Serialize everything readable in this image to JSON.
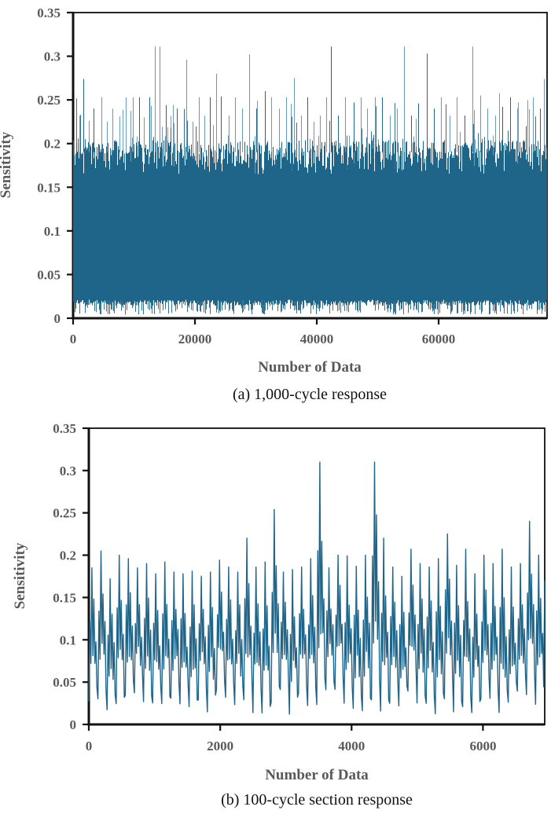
{
  "figure": {
    "description": "Two stacked sensitivity response plots",
    "background": "#ffffff"
  },
  "chart_data": [
    {
      "type": "line",
      "panel": "a",
      "caption": "(a) 1,000-cycle response",
      "xlabel": "Number of Data",
      "ylabel": "Sensitivity",
      "x_range": [
        0,
        77800
      ],
      "y_range": [
        0,
        0.35
      ],
      "x_tick_values": [
        0,
        20000,
        40000,
        60000
      ],
      "x_tick_labels": [
        "0",
        "20000",
        "40000",
        "60000"
      ],
      "y_tick_values": [
        0,
        0.05,
        0.1,
        0.15,
        0.2,
        0.25,
        0.3,
        0.35
      ],
      "y_tick_labels": [
        "0",
        "0.05",
        "0.1",
        "0.15",
        "0.2",
        "0.25",
        "0.3",
        "0.35"
      ],
      "grid": false,
      "legend": null,
      "line_color": "#1f6489",
      "spike_color": "#6e9cba",
      "axis_text_color": "#595959",
      "caption_color": "#111111",
      "series_kind": "dense-noise-band",
      "noise_band": {
        "seed": 7,
        "body_top_range": [
          0.165,
          0.205
        ],
        "body_bottom_range": [
          0.014,
          0.021
        ],
        "lower_spike_range": [
          0.004,
          0.012
        ],
        "lower_spike_rate": 0.32,
        "minor_upper_spike_range": [
          0.205,
          0.26
        ],
        "minor_upper_spike_rate": 0.1
      },
      "major_spikes": [
        [
          1000,
          0.232
        ],
        [
          1700,
          0.274
        ],
        [
          2600,
          0.226
        ],
        [
          3400,
          0.24
        ],
        [
          4700,
          0.253
        ],
        [
          5600,
          0.225
        ],
        [
          6500,
          0.24
        ],
        [
          7600,
          0.231
        ],
        [
          8600,
          0.253
        ],
        [
          9800,
          0.253
        ],
        [
          10800,
          0.253
        ],
        [
          11600,
          0.23
        ],
        [
          12500,
          0.253
        ],
        [
          13400,
          0.311
        ],
        [
          14200,
          0.311
        ],
        [
          15200,
          0.244
        ],
        [
          16000,
          0.218
        ],
        [
          17000,
          0.24
        ],
        [
          18600,
          0.296
        ],
        [
          19600,
          0.225
        ],
        [
          20600,
          0.253
        ],
        [
          21500,
          0.232
        ],
        [
          22500,
          0.253
        ],
        [
          23500,
          0.28
        ],
        [
          24300,
          0.254
        ],
        [
          25500,
          0.232
        ],
        [
          26600,
          0.253
        ],
        [
          27700,
          0.24
        ],
        [
          28900,
          0.302
        ],
        [
          30000,
          0.24
        ],
        [
          31500,
          0.26
        ],
        [
          32500,
          0.253
        ],
        [
          33800,
          0.24
        ],
        [
          35000,
          0.253
        ],
        [
          36200,
          0.275
        ],
        [
          37400,
          0.232
        ],
        [
          38500,
          0.253
        ],
        [
          39500,
          0.225
        ],
        [
          40500,
          0.232
        ],
        [
          41500,
          0.253
        ],
        [
          42300,
          0.311
        ],
        [
          43500,
          0.232
        ],
        [
          44700,
          0.253
        ],
        [
          46000,
          0.247
        ],
        [
          47200,
          0.253
        ],
        [
          48300,
          0.24
        ],
        [
          49500,
          0.253
        ],
        [
          50700,
          0.253
        ],
        [
          52000,
          0.232
        ],
        [
          53200,
          0.24
        ],
        [
          54300,
          0.311
        ],
        [
          55500,
          0.232
        ],
        [
          56700,
          0.246
        ],
        [
          58000,
          0.303
        ],
        [
          59200,
          0.24
        ],
        [
          60400,
          0.253
        ],
        [
          61800,
          0.232
        ],
        [
          63000,
          0.253
        ],
        [
          64200,
          0.232
        ],
        [
          65500,
          0.311
        ],
        [
          66800,
          0.255
        ],
        [
          68000,
          0.24
        ],
        [
          69300,
          0.232
        ],
        [
          70500,
          0.242
        ],
        [
          71800,
          0.253
        ],
        [
          73000,
          0.247
        ],
        [
          74300,
          0.22
        ],
        [
          75500,
          0.253
        ],
        [
          76600,
          0.24
        ],
        [
          77300,
          0.274
        ]
      ]
    },
    {
      "type": "line",
      "panel": "b",
      "caption": "(b) 100-cycle section response",
      "xlabel": "Number of Data",
      "ylabel": "Sensitivity",
      "x_range": [
        0,
        6940
      ],
      "y_range": [
        0,
        0.35
      ],
      "x_tick_values": [
        0,
        2000,
        4000,
        6000
      ],
      "x_tick_labels": [
        "0",
        "2000",
        "4000",
        "6000"
      ],
      "y_tick_values": [
        0,
        0.05,
        0.1,
        0.15,
        0.2,
        0.25,
        0.3,
        0.35
      ],
      "y_tick_labels": [
        "0",
        "0.05",
        "0.1",
        "0.15",
        "0.2",
        "0.25",
        "0.3",
        "0.35"
      ],
      "grid": false,
      "legend": null,
      "line_color": "#1f6489",
      "spike_color": "#6e9cba",
      "axis_text_color": "#595959",
      "caption_color": "#111111",
      "series_kind": "cyclic-wave",
      "wave": {
        "seed": 11,
        "visible_cycles": 50,
        "points_per_cycle": 9,
        "sub_cycle_envelope": [
          0.05,
          0.6,
          0.27,
          1.0,
          0.33,
          0.72,
          0.28,
          0.5,
          0.1
        ],
        "trough_range": [
          0.012,
          0.042
        ],
        "cycle_peaks": [
          0.185,
          0.205,
          0.172,
          0.2,
          0.196,
          0.185,
          0.19,
          0.178,
          0.192,
          0.18,
          0.178,
          0.181,
          0.175,
          0.18,
          0.194,
          0.186,
          0.18,
          0.22,
          0.186,
          0.192,
          0.254,
          0.18,
          0.183,
          0.186,
          0.196,
          0.31,
          0.185,
          0.2,
          0.199,
          0.187,
          0.2,
          0.31,
          0.22,
          0.186,
          0.175,
          0.207,
          0.19,
          0.186,
          0.196,
          0.225,
          0.188,
          0.207,
          0.178,
          0.2,
          0.19,
          0.207,
          0.186,
          0.19,
          0.24,
          0.2
        ]
      },
      "notable_spikes": [
        [
          3500,
          0.31
        ],
        [
          4330,
          0.31
        ],
        [
          2780,
          0.254
        ],
        [
          2413,
          0.22
        ],
        [
          5430,
          0.225
        ],
        [
          6637,
          0.24
        ],
        [
          150,
          0.205
        ]
      ]
    }
  ]
}
